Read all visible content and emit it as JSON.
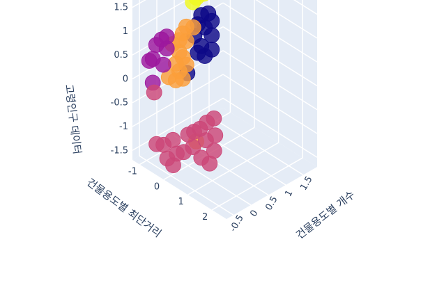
{
  "chart_data": {
    "type": "scatter",
    "projection": "3d",
    "xlabel": "건물용도별 개수",
    "ylabel": "건물용도별 최단거리",
    "zlabel": "고령인구 데이터",
    "x_ticks": [
      "1.5",
      "1",
      "0.5",
      "0",
      "-0.5"
    ],
    "y_ticks": [
      "-1",
      "0",
      "1",
      "2"
    ],
    "z_ticks": [
      "1.5",
      "1",
      "0.5",
      "0",
      "-0.5",
      "-1",
      "-1.5"
    ],
    "xlim": [
      -0.7,
      1.9
    ],
    "ylim": [
      -1.3,
      2.6
    ],
    "zlim": [
      -1.7,
      1.8
    ],
    "grid": true,
    "legend": "none",
    "series": [
      {
        "color": "#f0f921",
        "points": [
          {
            "x": 1.3,
            "y": -1.1,
            "z": 1.6
          },
          {
            "x": 1.0,
            "y": -1.1,
            "z": 1.6
          },
          {
            "x": 0.8,
            "y": -1.1,
            "z": 1.6
          },
          {
            "x": 0.7,
            "y": -1.1,
            "z": 1.55
          },
          {
            "x": 0.5,
            "y": -1.1,
            "z": 1.6
          },
          {
            "x": 1.5,
            "y": -1.1,
            "z": 1.05
          },
          {
            "x": 1.2,
            "y": -1.1,
            "z": 1.05
          },
          {
            "x": 1.0,
            "y": -1.1,
            "z": 1.05
          },
          {
            "x": 0.9,
            "y": -1.1,
            "z": 1.0
          }
        ]
      },
      {
        "color": "#0d0887",
        "points": [
          {
            "x": 1.2,
            "y": -0.9,
            "z": 0.7
          },
          {
            "x": 1.0,
            "y": -0.9,
            "z": 0.75
          },
          {
            "x": 0.9,
            "y": -0.9,
            "z": 0.6
          },
          {
            "x": 1.3,
            "y": -0.9,
            "z": 0.5
          },
          {
            "x": 1.1,
            "y": -0.9,
            "z": 0.45
          },
          {
            "x": 0.8,
            "y": -0.9,
            "z": 0.4
          },
          {
            "x": 1.3,
            "y": -0.9,
            "z": 0.2
          },
          {
            "x": 1.0,
            "y": -0.9,
            "z": 0.1
          },
          {
            "x": 0.9,
            "y": -0.9,
            "z": 0.0
          },
          {
            "x": 1.3,
            "y": -0.9,
            "z": -0.1
          },
          {
            "x": 1.1,
            "y": -0.9,
            "z": -0.15
          },
          {
            "x": 0.6,
            "y": -0.9,
            "z": -0.3
          }
        ]
      },
      {
        "color": "#fb9f3a",
        "points": [
          {
            "x": 0.7,
            "y": -0.8,
            "z": 0.65
          },
          {
            "x": 0.5,
            "y": -0.8,
            "z": 0.75
          },
          {
            "x": 0.4,
            "y": -0.8,
            "z": 0.65
          },
          {
            "x": 0.3,
            "y": -0.8,
            "z": 0.55
          },
          {
            "x": 0.1,
            "y": -0.8,
            "z": 0.55
          },
          {
            "x": 0.5,
            "y": -0.8,
            "z": 0.45
          },
          {
            "x": 0.3,
            "y": -0.8,
            "z": 0.3
          },
          {
            "x": 0.4,
            "y": -0.8,
            "z": 0.15
          },
          {
            "x": 0.2,
            "y": -0.8,
            "z": 0.1
          },
          {
            "x": 0.5,
            "y": -0.8,
            "z": -0.05
          },
          {
            "x": 0.3,
            "y": -0.8,
            "z": -0.1
          },
          {
            "x": 0.0,
            "y": -0.8,
            "z": -0.1
          },
          {
            "x": 0.4,
            "y": -0.8,
            "z": -0.3
          },
          {
            "x": 0.2,
            "y": -0.8,
            "z": -0.25
          },
          {
            "x": 0.3,
            "y": -0.1,
            "z": -1.35
          }
        ]
      },
      {
        "color": "#9c179e",
        "points": [
          {
            "x": -0.2,
            "y": -0.6,
            "z": 0.9
          },
          {
            "x": -0.35,
            "y": -0.6,
            "z": 0.9
          },
          {
            "x": -0.5,
            "y": -0.6,
            "z": 0.85
          },
          {
            "x": -0.2,
            "y": -0.6,
            "z": 0.65
          },
          {
            "x": -0.6,
            "y": -0.6,
            "z": 0.6
          },
          {
            "x": -0.7,
            "y": -0.6,
            "z": 0.6
          },
          {
            "x": -0.3,
            "y": -0.6,
            "z": 0.35
          },
          {
            "x": -0.6,
            "y": -0.6,
            "z": 0.1
          }
        ]
      },
      {
        "color": "#cc4778",
        "points": [
          {
            "x": -0.7,
            "y": -0.4,
            "z": 0.0
          },
          {
            "x": 0.6,
            "y": 0.2,
            "z": -0.9
          },
          {
            "x": 0.4,
            "y": 0.2,
            "z": -0.9
          },
          {
            "x": 0.2,
            "y": 0.2,
            "z": -0.95
          },
          {
            "x": 0.1,
            "y": 0.1,
            "z": -1.0
          },
          {
            "x": 0.0,
            "y": 0.0,
            "z": -1.05
          },
          {
            "x": -0.3,
            "y": -0.2,
            "z": -1.1
          },
          {
            "x": -0.5,
            "y": -0.3,
            "z": -1.15
          },
          {
            "x": -0.7,
            "y": -0.3,
            "z": -1.05
          },
          {
            "x": 0.5,
            "y": 0.4,
            "z": -1.15
          },
          {
            "x": 0.3,
            "y": 0.3,
            "z": -1.2
          },
          {
            "x": 0.0,
            "y": 0.2,
            "z": -1.25
          },
          {
            "x": -0.2,
            "y": 0.1,
            "z": -1.3
          },
          {
            "x": -0.4,
            "y": 0.1,
            "z": -1.25
          },
          {
            "x": -0.6,
            "y": 0.0,
            "z": -1.3
          },
          {
            "x": 0.4,
            "y": 0.5,
            "z": -1.4
          },
          {
            "x": 0.1,
            "y": 0.4,
            "z": -1.45
          },
          {
            "x": -0.5,
            "y": 0.1,
            "z": -1.45
          },
          {
            "x": 0.2,
            "y": 0.6,
            "z": -1.55
          }
        ]
      }
    ]
  }
}
